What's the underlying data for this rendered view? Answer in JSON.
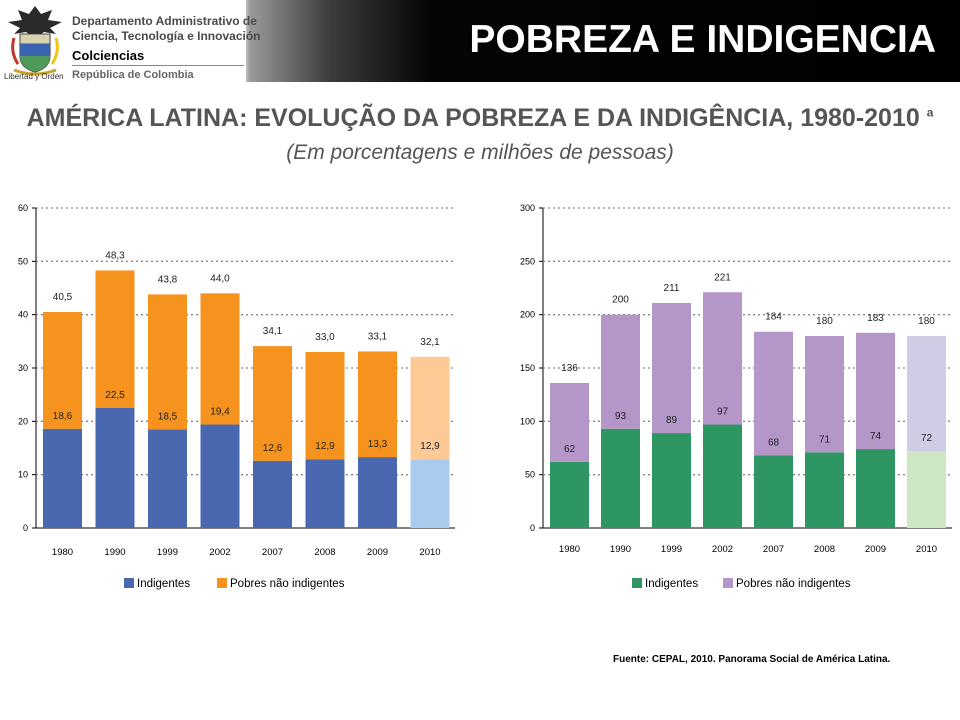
{
  "header": {
    "org_line1": "Departamento Administrativo de",
    "org_line2": "Ciencia, Tecnología e Innovación",
    "org_name": "Colciencias",
    "org_country": "República de Colombia",
    "motto": "Libertad y Orden",
    "title": "POBREZA E INDIGENCIA"
  },
  "figure": {
    "title": "AMÉRICA LATINA: EVOLUÇÃO DA POBREZA E DA INDIGÊNCIA, 1980-2010",
    "title_sup": "a",
    "subtitle": "(Em porcentagens e milhões de pessoas)"
  },
  "source": "Fuente: CEPAL, 2010. Panorama Social de América Latina.",
  "chart_data": [
    {
      "type": "bar",
      "stacked": true,
      "categories": [
        "1980",
        "1990",
        "1999",
        "2002",
        "2007",
        "2008",
        "2009",
        "2010"
      ],
      "ylim": [
        0,
        60
      ],
      "yticks": [
        0,
        10,
        20,
        30,
        40,
        50,
        60
      ],
      "grid": true,
      "legend_position": "bottom",
      "series": [
        {
          "name": "Indigentes",
          "color": "#4a68b0",
          "projected_color": "#a8cbee",
          "values": [
            18.6,
            22.5,
            18.5,
            19.4,
            12.6,
            12.9,
            13.3,
            12.9
          ],
          "labels": [
            "18,6",
            "22,5",
            "18,5",
            "19,4",
            "12,6",
            "12,9",
            "13,3",
            "12,9"
          ]
        },
        {
          "name": "Pobres não indigentes",
          "color": "#f5931e",
          "projected_color": "#fdca96",
          "values": [
            21.9,
            25.8,
            25.3,
            24.6,
            21.5,
            20.1,
            19.8,
            19.2
          ]
        }
      ],
      "totals": [
        40.5,
        48.3,
        43.8,
        44.0,
        34.1,
        33.0,
        33.1,
        32.1
      ],
      "total_labels": [
        "40,5",
        "48,3",
        "43,8",
        "44,0",
        "34,1",
        "33,0",
        "33,1",
        "32,1"
      ]
    },
    {
      "type": "bar",
      "stacked": true,
      "categories": [
        "1980",
        "1990",
        "1999",
        "2002",
        "2007",
        "2008",
        "2009",
        "2010"
      ],
      "ylim": [
        0,
        300
      ],
      "yticks": [
        0,
        50,
        100,
        150,
        200,
        250,
        300
      ],
      "grid": true,
      "legend_position": "bottom",
      "series": [
        {
          "name": "Indigentes",
          "color": "#2e9662",
          "projected_color": "#cde6c3",
          "values": [
            62,
            93,
            89,
            97,
            68,
            71,
            74,
            72
          ],
          "labels": [
            "62",
            "93",
            "89",
            "97",
            "68",
            "71",
            "74",
            "72"
          ]
        },
        {
          "name": "Pobres não indigentes",
          "color": "#b497c8",
          "projected_color": "#cfcde6",
          "values": [
            74,
            107,
            122,
            124,
            116,
            109,
            109,
            108
          ]
        }
      ],
      "totals": [
        136,
        200,
        211,
        221,
        184,
        180,
        183,
        180
      ],
      "total_labels": [
        "136",
        "200",
        "211",
        "221",
        "184",
        "180",
        "183",
        "180"
      ]
    }
  ]
}
